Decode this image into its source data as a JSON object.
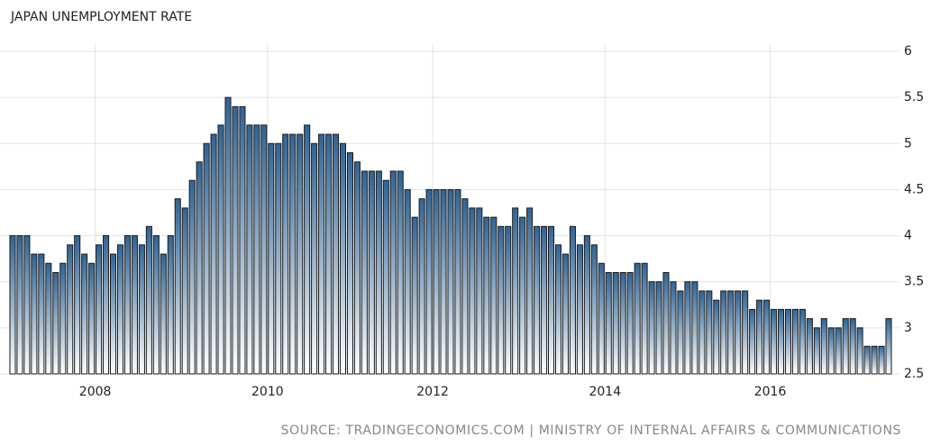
{
  "chart_data": {
    "type": "bar",
    "title": "JAPAN UNEMPLOYMENT RATE",
    "source": "SOURCE: TRADINGECONOMICS.COM | MINISTRY OF INTERNAL AFFAIRS & COMMUNICATIONS",
    "color": "#2f6496",
    "grid": true,
    "ylim": [
      2.5,
      6
    ],
    "yticks": [
      2.5,
      3,
      3.5,
      4,
      4.5,
      5,
      5.5,
      6
    ],
    "categories": [
      null,
      null,
      null,
      null,
      null,
      null,
      null,
      null,
      null,
      null,
      null,
      null,
      "2008",
      null,
      null,
      null,
      null,
      null,
      null,
      null,
      null,
      null,
      null,
      null,
      null,
      null,
      null,
      null,
      null,
      null,
      null,
      null,
      null,
      null,
      null,
      null,
      "2010",
      null,
      null,
      null,
      null,
      null,
      null,
      null,
      null,
      null,
      null,
      null,
      null,
      null,
      null,
      null,
      null,
      null,
      null,
      null,
      null,
      null,
      null,
      "2012",
      null,
      null,
      null,
      null,
      null,
      null,
      null,
      null,
      null,
      null,
      null,
      null,
      null,
      null,
      null,
      null,
      null,
      null,
      null,
      null,
      null,
      null,
      null,
      "2014",
      null,
      null,
      null,
      null,
      null,
      null,
      null,
      null,
      null,
      null,
      null,
      null,
      null,
      null,
      null,
      null,
      null,
      null,
      null,
      null,
      null,
      null,
      "2016",
      null,
      null,
      null,
      null,
      null,
      null,
      null,
      null,
      null,
      null,
      null,
      null,
      null,
      null,
      null,
      null
    ],
    "values": [
      4.0,
      4.0,
      4.0,
      3.8,
      3.8,
      3.7,
      3.6,
      3.7,
      3.9,
      4.0,
      3.8,
      3.7,
      3.9,
      4.0,
      3.8,
      3.9,
      4.0,
      4.0,
      3.9,
      4.1,
      4.0,
      3.8,
      4.0,
      4.4,
      4.3,
      4.6,
      4.8,
      5.0,
      5.1,
      5.2,
      5.5,
      5.4,
      5.4,
      5.2,
      5.2,
      5.2,
      5.0,
      5.0,
      5.1,
      5.1,
      5.1,
      5.2,
      5.0,
      5.1,
      5.1,
      5.1,
      5.0,
      4.9,
      4.8,
      4.7,
      4.7,
      4.7,
      4.6,
      4.7,
      4.7,
      4.5,
      4.2,
      4.4,
      4.5,
      4.5,
      4.5,
      4.5,
      4.5,
      4.4,
      4.3,
      4.3,
      4.2,
      4.2,
      4.1,
      4.1,
      4.3,
      4.2,
      4.3,
      4.1,
      4.1,
      4.1,
      3.9,
      3.8,
      4.1,
      3.9,
      4.0,
      3.9,
      3.7,
      3.6,
      3.6,
      3.6,
      3.6,
      3.7,
      3.7,
      3.5,
      3.5,
      3.6,
      3.5,
      3.4,
      3.5,
      3.5,
      3.4,
      3.4,
      3.3,
      3.4,
      3.4,
      3.4,
      3.4,
      3.2,
      3.3,
      3.3,
      3.2,
      3.2,
      3.2,
      3.2,
      3.2,
      3.1,
      3.0,
      3.1,
      3.0,
      3.0,
      3.1,
      3.1,
      3.0,
      2.8,
      2.8,
      2.8,
      3.1
    ]
  }
}
